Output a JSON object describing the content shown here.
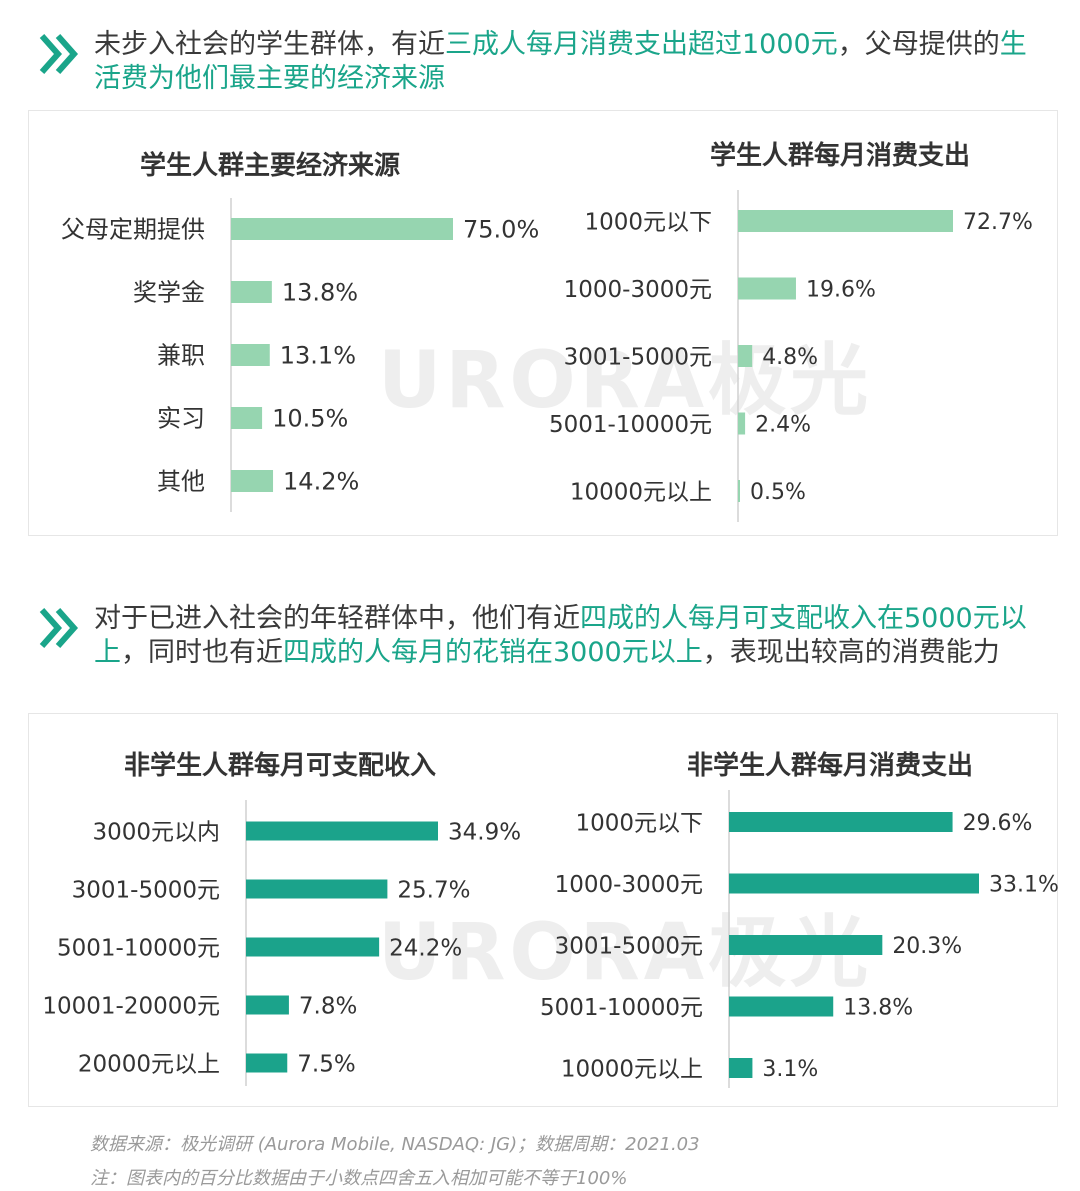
{
  "section1": {
    "text_pre": "未步入社会的学生群体，有近",
    "text_hl1": "三成人每月消费支出超过1000元",
    "text_mid": "，父母提供的",
    "text_hl2": "生活费为他们最主要的经济来源"
  },
  "section2": {
    "text_pre": "对于已进入社会的年轻群体中，他们有近",
    "text_hl1": "四成的人每月可支配收入在5000元以上",
    "text_mid": "，同时也有近",
    "text_hl2": "四成的人每月的花销在3000元以上",
    "text_post": "，表现出较高的消费能力"
  },
  "watermark": "URORA极光",
  "colors": {
    "accent": "#1aa58a",
    "light_bar": "#96d5b0",
    "dark_bar": "#1ba38b"
  },
  "chart_data": [
    {
      "type": "bar",
      "title": "学生人群主要经济来源",
      "categories": [
        "父母定期提供",
        "奖学金",
        "兼职",
        "实习",
        "其他"
      ],
      "values": [
        75.0,
        13.8,
        13.1,
        10.5,
        14.2
      ],
      "labels": [
        "75.0%",
        "13.8%",
        "13.1%",
        "10.5%",
        "14.2%"
      ],
      "orientation": "horizontal"
    },
    {
      "type": "bar",
      "title": "学生人群每月消费支出",
      "categories": [
        "1000元以下",
        "1000-3000元",
        "3001-5000元",
        "5001-10000元",
        "10000元以上"
      ],
      "values": [
        72.7,
        19.6,
        4.8,
        2.4,
        0.5
      ],
      "labels": [
        "72.7%",
        "19.6%",
        "4.8%",
        "2.4%",
        "0.5%"
      ],
      "orientation": "horizontal"
    },
    {
      "type": "bar",
      "title": "非学生人群每月可支配收入",
      "categories": [
        "3000元以内",
        "3001-5000元",
        "5001-10000元",
        "10001-20000元",
        "20000元以上"
      ],
      "values": [
        34.9,
        25.7,
        24.2,
        7.8,
        7.5
      ],
      "labels": [
        "34.9%",
        "25.7%",
        "24.2%",
        "7.8%",
        "7.5%"
      ],
      "orientation": "horizontal"
    },
    {
      "type": "bar",
      "title": "非学生人群每月消费支出",
      "categories": [
        "1000元以下",
        "1000-3000元",
        "3001-5000元",
        "5001-10000元",
        "10000元以上"
      ],
      "values": [
        29.6,
        33.1,
        20.3,
        13.8,
        3.1
      ],
      "labels": [
        "29.6%",
        "33.1%",
        "20.3%",
        "13.8%",
        "3.1%"
      ],
      "orientation": "horizontal"
    }
  ],
  "footnotes": {
    "source": "数据来源：极光调研 (Aurora Mobile, NASDAQ: JG)；数据周期：2021.03",
    "note": "注：图表内的百分比数据由于小数点四舍五入相加可能不等于100%"
  }
}
